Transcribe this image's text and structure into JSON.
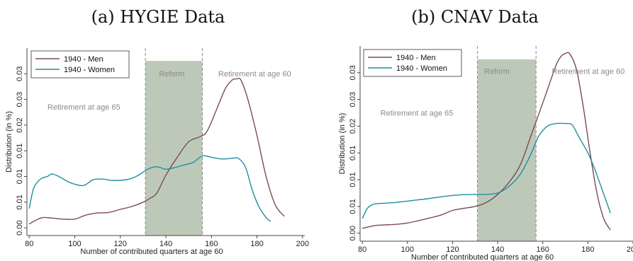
{
  "panels": [
    {
      "title": "(a) HYGIE Data"
    },
    {
      "title": "(b) CNAV Data"
    }
  ],
  "colors": {
    "men": "#7b4a5a",
    "women": "#1f8fa0",
    "reform_band": "#b9c6b4",
    "frame": "#444444"
  },
  "chart_data": [
    {
      "type": "line",
      "title": "(a) HYGIE Data",
      "xlabel": "Number of contributed quarters at age 60",
      "ylabel": "Distribution (in %)",
      "xlim": [
        79,
        201
      ],
      "ylim": [
        -0.3,
        7.0
      ],
      "xticks": [
        80,
        100,
        120,
        140,
        160,
        180,
        200
      ],
      "yticks": [
        0,
        1,
        2,
        3,
        4,
        5,
        6
      ],
      "ytick_labels": [
        "0.00",
        "0.01",
        "0.01",
        "0.01",
        "0.02",
        "0.03",
        "0.03"
      ],
      "grid": false,
      "legend": {
        "position": "top-left",
        "entries": [
          "1940 - Men",
          "1940 - Women"
        ]
      },
      "series": [
        {
          "name": "1940 - Men",
          "color": "#7b4a5a",
          "x": [
            80,
            83,
            86,
            90,
            95,
            100,
            105,
            110,
            115,
            120,
            125,
            130,
            133,
            136,
            140,
            145,
            150,
            155,
            158,
            162,
            166,
            169,
            171,
            173,
            176,
            180,
            184,
            188,
            192
          ],
          "y": [
            0.15,
            0.3,
            0.4,
            0.38,
            0.34,
            0.34,
            0.5,
            0.58,
            0.6,
            0.72,
            0.83,
            1.0,
            1.15,
            1.35,
            2.05,
            2.75,
            3.35,
            3.55,
            3.75,
            4.55,
            5.4,
            5.75,
            5.8,
            5.75,
            5.0,
            3.6,
            2.0,
            0.9,
            0.45
          ]
        },
        {
          "name": "1940 - Women",
          "color": "#1f8fa0",
          "x": [
            80,
            82,
            85,
            88,
            90,
            93,
            97,
            100,
            104,
            108,
            112,
            116,
            120,
            124,
            128,
            132,
            136,
            140,
            144,
            148,
            152,
            156,
            160,
            165,
            170,
            172,
            175,
            178,
            181,
            184,
            186
          ],
          "y": [
            0.75,
            1.55,
            1.9,
            2.0,
            2.1,
            2.0,
            1.8,
            1.7,
            1.65,
            1.87,
            1.9,
            1.85,
            1.85,
            1.9,
            2.05,
            2.28,
            2.38,
            2.28,
            2.35,
            2.45,
            2.55,
            2.8,
            2.75,
            2.68,
            2.72,
            2.7,
            2.35,
            1.45,
            0.8,
            0.4,
            0.25
          ]
        }
      ],
      "bands": [
        {
          "label": "Reform",
          "x": [
            131,
            156
          ]
        }
      ],
      "vlines": [
        131,
        156
      ],
      "annotations": [
        {
          "text": "Reform",
          "x": 137,
          "y": 5.9
        },
        {
          "text": "Retirement at age 60",
          "x": 163,
          "y": 5.9
        },
        {
          "text": "Retirement at age 65",
          "x": 88,
          "y": 4.6
        }
      ]
    },
    {
      "type": "line",
      "title": "(b) CNAV Data",
      "xlabel": "Number of contributed quarters at age 60",
      "ylabel": "Distribution (in %)",
      "xlim": [
        79,
        200
      ],
      "ylim": [
        -0.3,
        7.0
      ],
      "xticks": [
        80,
        100,
        120,
        140,
        160,
        180,
        200
      ],
      "yticks": [
        0,
        1,
        2,
        3,
        4,
        5,
        6
      ],
      "ytick_labels": [
        "0.00",
        "0.01",
        "0.01",
        "0.01",
        "0.02",
        "0.03",
        "0.03"
      ],
      "grid": false,
      "legend": {
        "position": "top-left",
        "entries": [
          "1940 - Men",
          "1940 - Women"
        ]
      },
      "series": [
        {
          "name": "1940 - Men",
          "color": "#7b4a5a",
          "x": [
            80,
            83,
            86,
            90,
            95,
            100,
            105,
            110,
            115,
            120,
            125,
            130,
            135,
            140,
            145,
            150,
            155,
            158,
            162,
            166,
            168,
            170,
            172,
            175,
            178,
            181,
            184,
            187,
            190
          ],
          "y": [
            0.18,
            0.24,
            0.29,
            0.31,
            0.33,
            0.38,
            0.47,
            0.57,
            0.68,
            0.85,
            0.93,
            1.0,
            1.15,
            1.45,
            1.9,
            2.55,
            3.7,
            4.4,
            5.35,
            6.3,
            6.6,
            6.72,
            6.7,
            6.1,
            4.7,
            3.0,
            1.5,
            0.55,
            0.12
          ]
        },
        {
          "name": "1940 - Women",
          "color": "#1f8fa0",
          "x": [
            80,
            82,
            84,
            86,
            90,
            95,
            100,
            105,
            110,
            115,
            120,
            125,
            130,
            135,
            140,
            145,
            150,
            155,
            158,
            162,
            166,
            170,
            173,
            176,
            180,
            183,
            186,
            190
          ],
          "y": [
            0.55,
            0.9,
            1.05,
            1.1,
            1.12,
            1.15,
            1.2,
            1.25,
            1.3,
            1.36,
            1.41,
            1.44,
            1.45,
            1.45,
            1.5,
            1.75,
            2.2,
            3.0,
            3.6,
            4.0,
            4.1,
            4.1,
            4.05,
            3.6,
            3.0,
            2.4,
            1.7,
            0.75
          ]
        }
      ],
      "bands": [
        {
          "label": "Reform",
          "x": [
            131,
            157
          ]
        }
      ],
      "vlines": [
        131,
        157
      ],
      "annotations": [
        {
          "text": "Reform",
          "x": 134,
          "y": 5.95
        },
        {
          "text": "Retirement at age 60",
          "x": 164,
          "y": 5.95
        },
        {
          "text": "Retirement at age 65",
          "x": 88,
          "y": 4.4
        }
      ]
    }
  ]
}
